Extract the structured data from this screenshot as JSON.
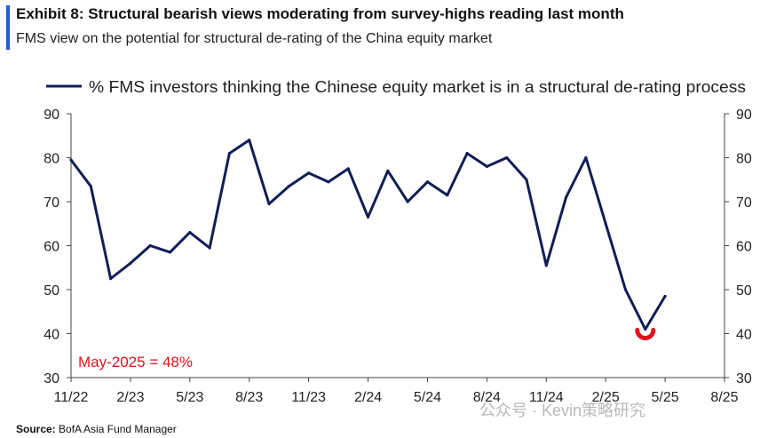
{
  "header": {
    "title": "Exhibit 8: Structural bearish views moderating from survey-highs reading last month",
    "subtitle": "FMS view on the potential for structural de-rating of the China equity market"
  },
  "footer": {
    "source_label": "Source:",
    "source_text": "BofA Asia Fund Manager",
    "watermark": "公众号 · Kevin策略研究"
  },
  "chart_data": {
    "type": "line",
    "x_ticks": [
      "11/22",
      "2/23",
      "5/23",
      "8/23",
      "11/23",
      "2/24",
      "5/24",
      "8/24",
      "11/24",
      "2/25",
      "5/25",
      "8/25"
    ],
    "x": [
      "11/22",
      "12/22",
      "1/23",
      "2/23",
      "3/23",
      "4/23",
      "5/23",
      "6/23",
      "7/23",
      "8/23",
      "9/23",
      "10/23",
      "11/23",
      "12/23",
      "1/24",
      "2/24",
      "3/24",
      "4/24",
      "5/24",
      "6/24",
      "7/24",
      "8/24",
      "9/24",
      "10/24",
      "11/24",
      "12/24",
      "1/25",
      "2/25",
      "3/25",
      "4/25",
      "5/25"
    ],
    "series": [
      {
        "name": "% FMS investors thinking the Chinese equity market is in a structural de-rating process",
        "color": "#0e1e5b",
        "values": [
          79.5,
          73.5,
          52.5,
          56,
          60,
          58.5,
          63,
          59.5,
          81,
          84,
          69.5,
          73.5,
          76.5,
          74.5,
          77.5,
          66.5,
          77,
          70,
          74.5,
          71.5,
          81,
          78,
          80,
          75,
          55.5,
          71,
          80,
          65,
          50,
          41,
          48.5
        ]
      }
    ],
    "ylim": [
      30,
      90
    ],
    "y_ticks": [
      30,
      40,
      50,
      60,
      70,
      80,
      90
    ],
    "annotation": {
      "text": "May-2025 = 48%",
      "color": "#e3121a"
    },
    "legend_position": "top",
    "grid": false
  }
}
